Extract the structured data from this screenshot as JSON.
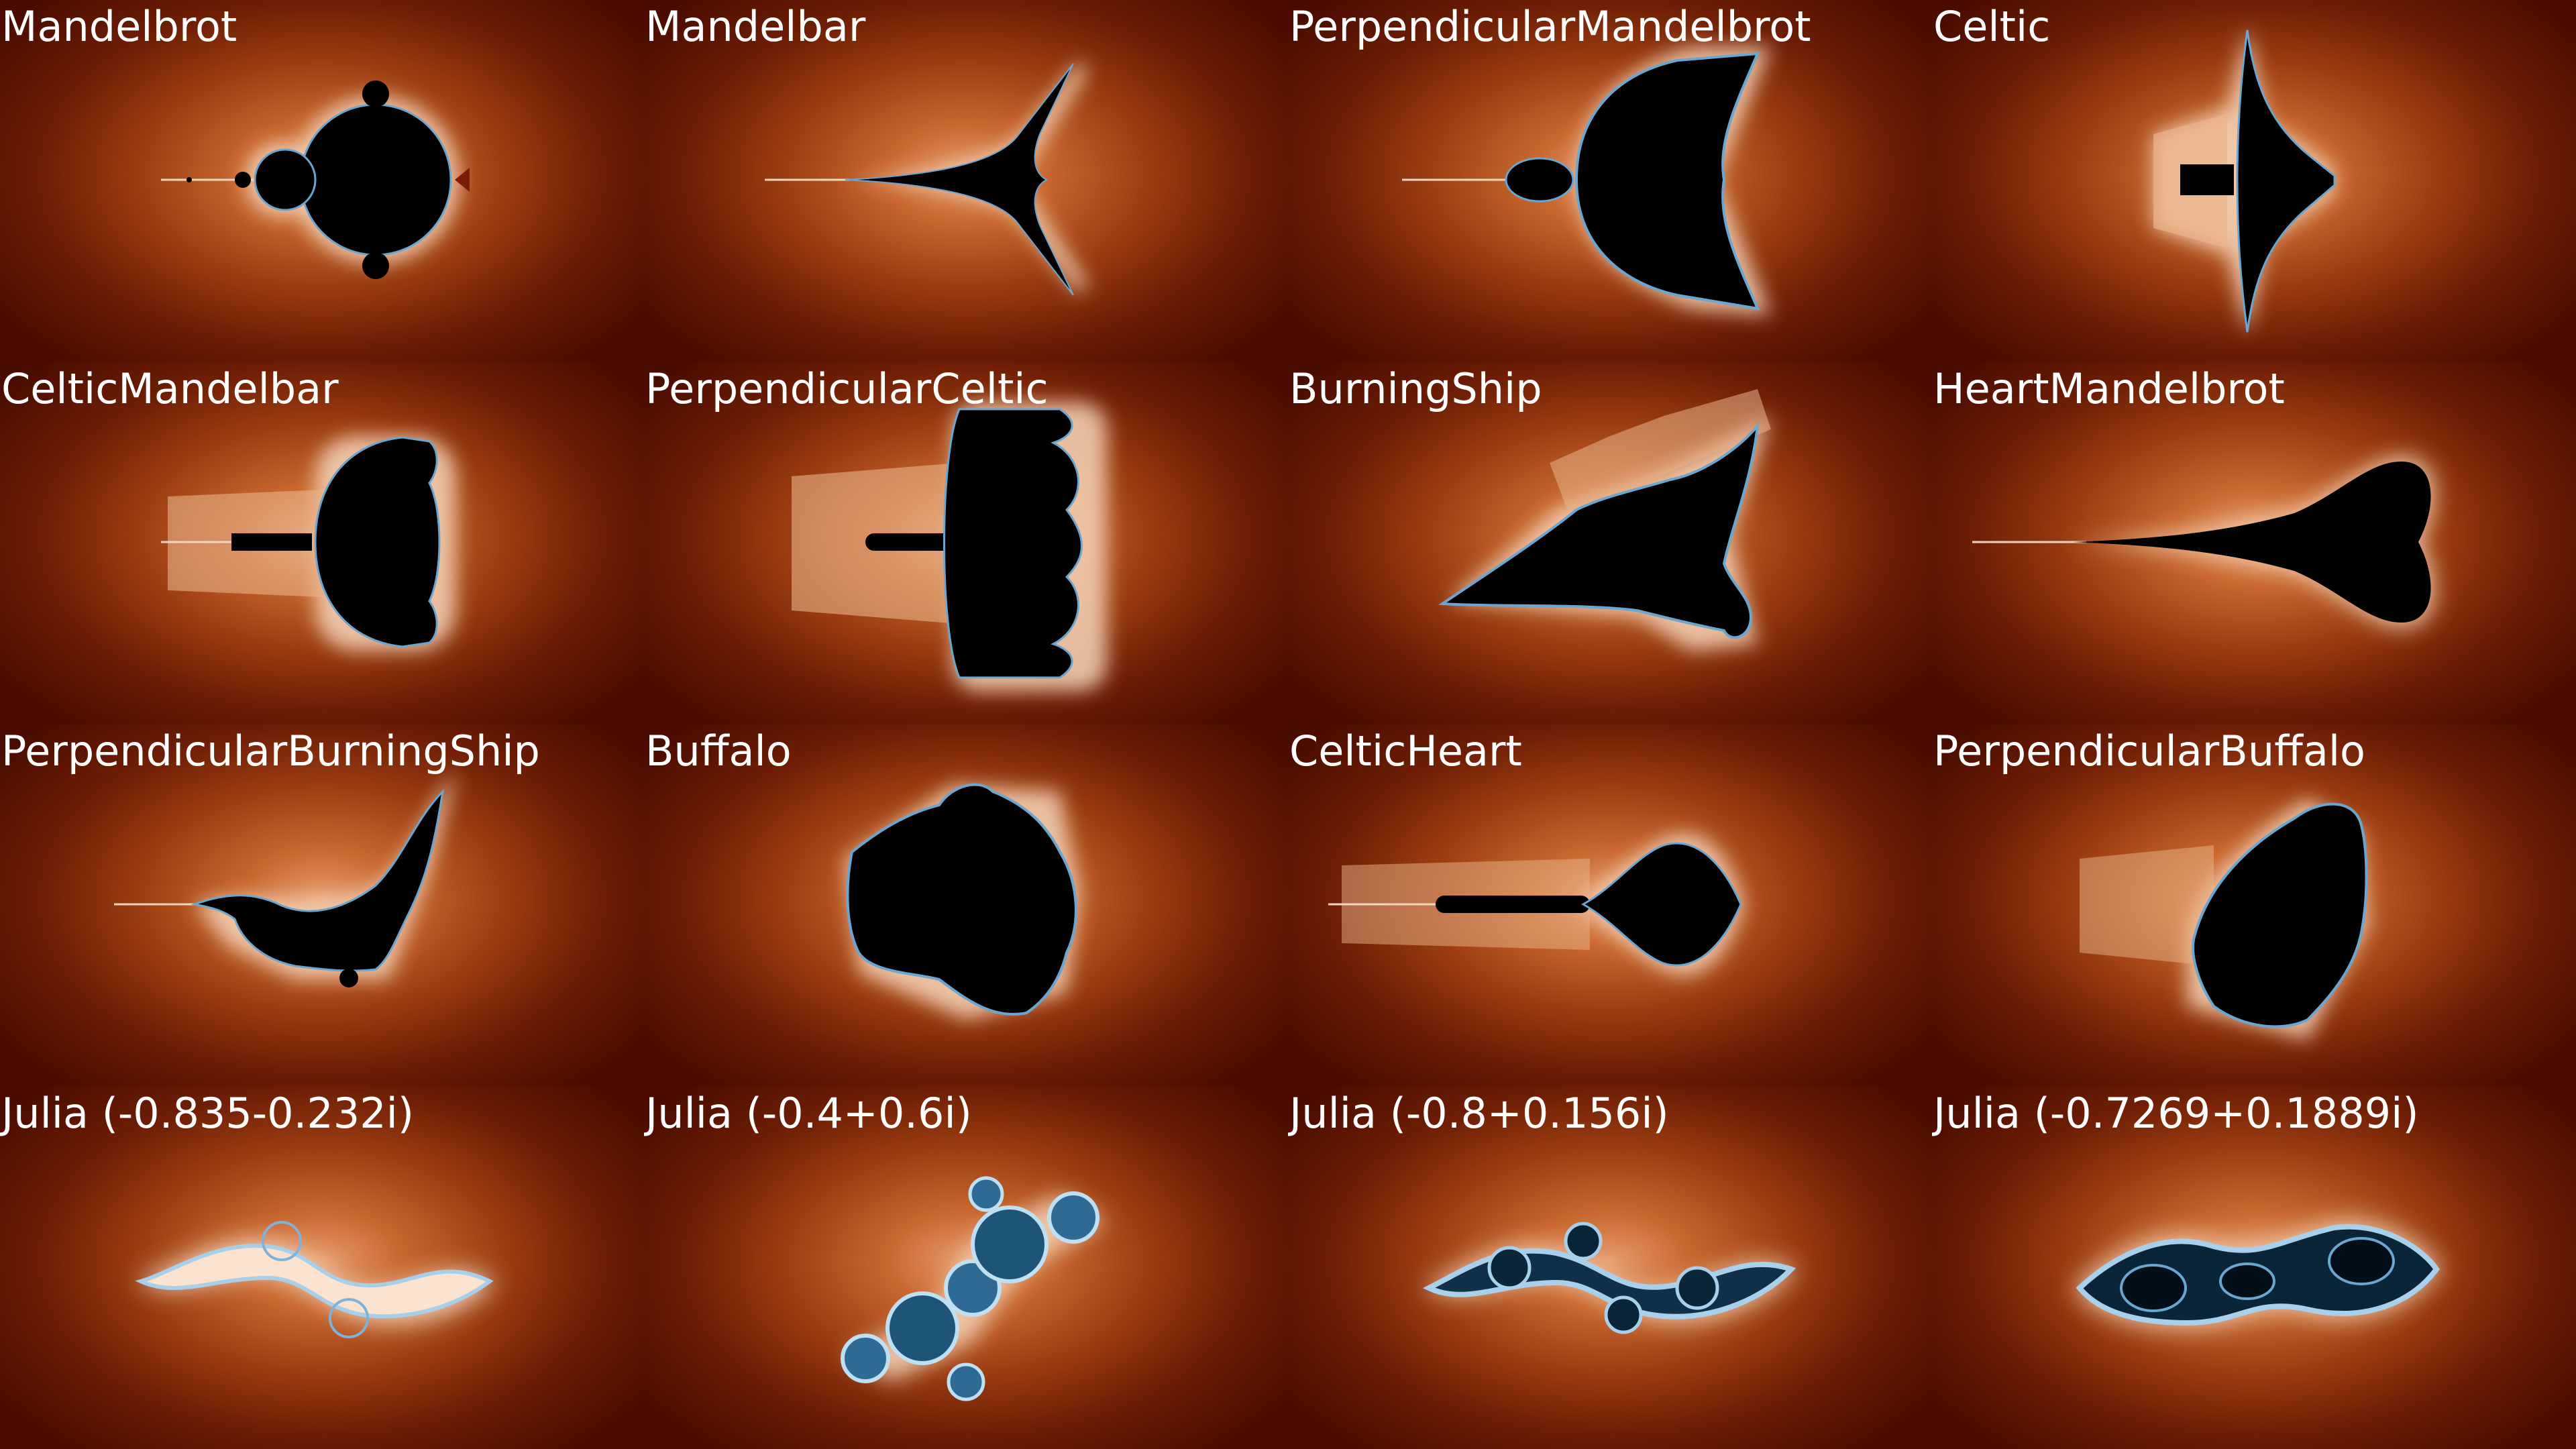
{
  "panels": [
    {
      "title": "Mandelbrot",
      "shape": "mandelbrot-shape"
    },
    {
      "title": "Mandelbar",
      "shape": "mandelbar-shape"
    },
    {
      "title": "PerpendicularMandelbrot",
      "shape": "perpendicular-mandelbrot-shape"
    },
    {
      "title": "Celtic",
      "shape": "celtic-shape"
    },
    {
      "title": "CelticMandelbar",
      "shape": "celtic-mandelbar-shape"
    },
    {
      "title": "PerpendicularCeltic",
      "shape": "perpendicular-celtic-shape"
    },
    {
      "title": "BurningShip",
      "shape": "burning-ship-shape"
    },
    {
      "title": "HeartMandelbrot",
      "shape": "heart-mandelbrot-shape"
    },
    {
      "title": "PerpendicularBurningShip",
      "shape": "perpendicular-burning-ship-shape"
    },
    {
      "title": "Buffalo",
      "shape": "buffalo-shape"
    },
    {
      "title": "CelticHeart",
      "shape": "celtic-heart-shape"
    },
    {
      "title": "PerpendicularBuffalo",
      "shape": "perpendicular-buffalo-shape"
    },
    {
      "title": "Julia (-0.835-0.232i)",
      "shape": "julia-shape"
    },
    {
      "title": "Julia (-0.4+0.6i)",
      "shape": "julia-shape"
    },
    {
      "title": "Julia (-0.8+0.156i)",
      "shape": "julia-shape"
    },
    {
      "title": "Julia (-0.7269+0.1889i)",
      "shape": "julia-shape"
    }
  ],
  "colors": {
    "background_dark": "#4a0c00",
    "background_mid": "#9c3e12",
    "glow": "#f3c7a4",
    "set_fill": "#000000",
    "edge_blue": "#6aa6cf",
    "julia_dark": "#0a2438",
    "label": "#ffffff"
  }
}
